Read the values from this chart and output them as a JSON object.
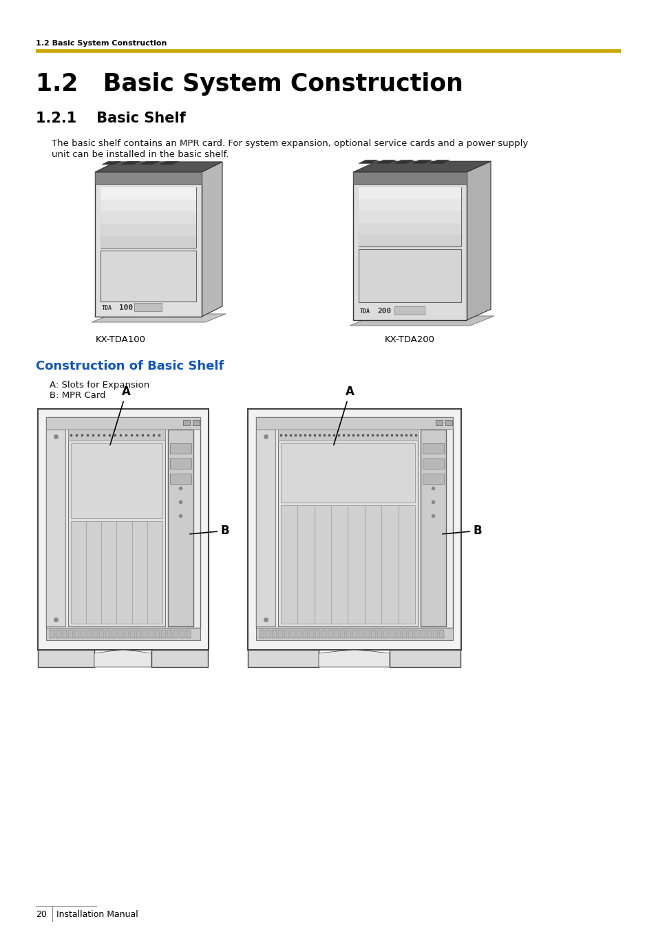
{
  "page_bg": "#ffffff",
  "header_text": "1.2 Basic System Construction",
  "header_text_color": "#000000",
  "yellow_line_color": "#c8a800",
  "title_main": "1.2   Basic System Construction",
  "title_sub": "1.2.1    Basic Shelf",
  "body_text_line1": "The basic shelf contains an MPR card. For system expansion, optional service cards and a power supply",
  "body_text_line2": "unit can be installed in the basic shelf.",
  "section_title": "Construction of Basic Shelf",
  "section_title_color": "#1155bb",
  "label_a": "A: Slots for Expansion",
  "label_b": "B: MPR Card",
  "caption_left": "KX-TDA100",
  "caption_right": "KX-TDA200",
  "footer_page": "20",
  "footer_text": "Installation Manual",
  "line_color": "#333333",
  "gray_light": "#e8e8e8",
  "gray_mid": "#cccccc",
  "gray_dark": "#aaaaaa",
  "gray_panel": "#d4d4d4",
  "gray_slot": "#c0c0c0"
}
